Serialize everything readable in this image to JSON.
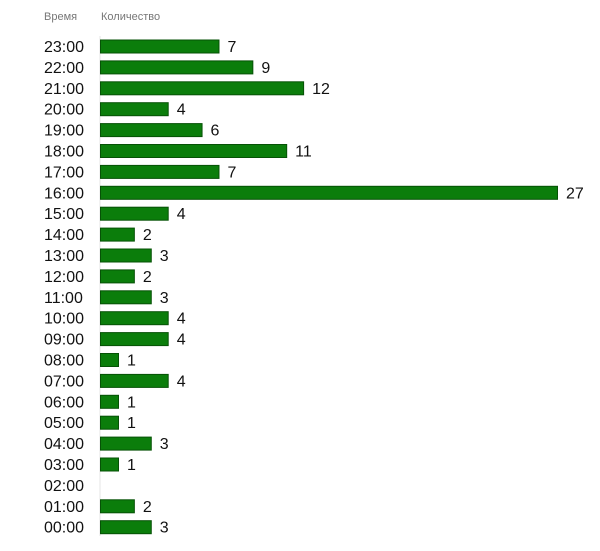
{
  "chart_data": {
    "type": "bar",
    "orientation": "horizontal",
    "column_headers": [
      "Время",
      "Количество"
    ],
    "categories": [
      "23:00",
      "22:00",
      "21:00",
      "20:00",
      "19:00",
      "18:00",
      "17:00",
      "16:00",
      "15:00",
      "14:00",
      "13:00",
      "12:00",
      "11:00",
      "10:00",
      "09:00",
      "08:00",
      "07:00",
      "06:00",
      "05:00",
      "04:00",
      "03:00",
      "02:00",
      "01:00",
      "00:00"
    ],
    "values": [
      7,
      9,
      12,
      4,
      6,
      11,
      7,
      27,
      4,
      2,
      3,
      2,
      3,
      4,
      4,
      1,
      4,
      1,
      1,
      3,
      1,
      0,
      2,
      3
    ],
    "bar_color": "#0b7d0b",
    "bar_border_color": "#065206",
    "xlim": [
      0,
      27
    ],
    "grid": false,
    "legend": "none"
  }
}
